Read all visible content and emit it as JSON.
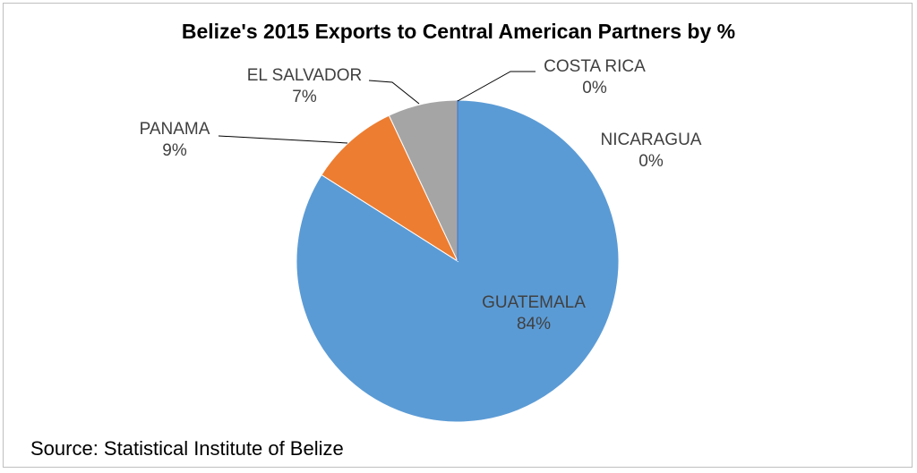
{
  "chart_data": {
    "type": "pie",
    "title": "Belize's 2015 Exports to Central American Partners by %",
    "source": "Source: Statistical Institute of Belize",
    "slices": [
      {
        "label": "GUATEMALA",
        "value": 84,
        "display": "84%",
        "color": "#5b9bd5"
      },
      {
        "label": "PANAMA",
        "value": 9,
        "display": "9%",
        "color": "#ed7d31"
      },
      {
        "label": "EL SALVADOR",
        "value": 7,
        "display": "7%",
        "color": "#a5a5a5"
      },
      {
        "label": "COSTA RICA",
        "value": 0,
        "display": "0%",
        "color": "#ffc000"
      },
      {
        "label": "NICARAGUA",
        "value": 0,
        "display": "0%",
        "color": "#4472c4"
      }
    ],
    "legend": "none"
  }
}
